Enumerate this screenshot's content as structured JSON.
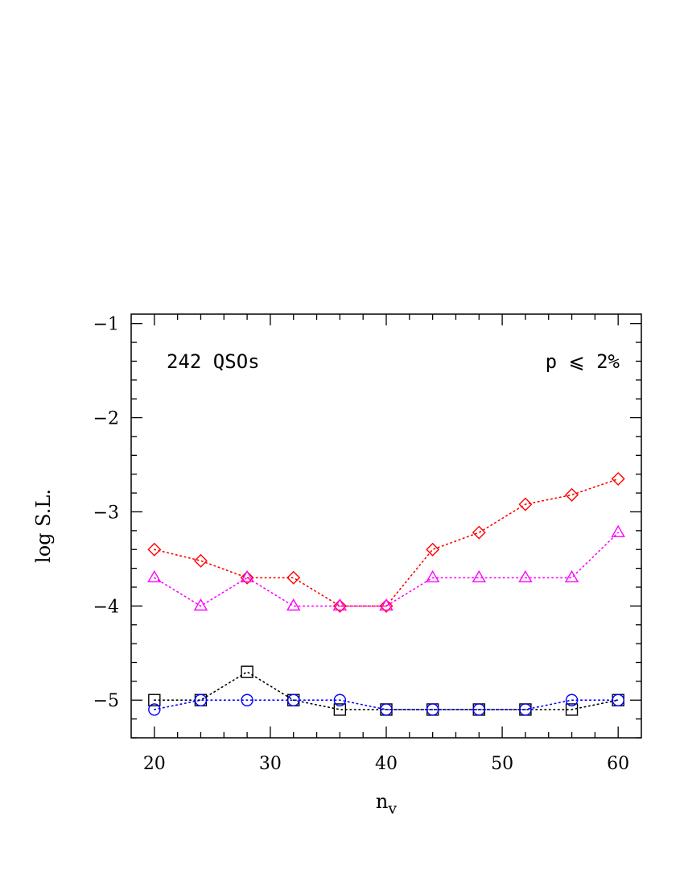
{
  "chart_data": {
    "type": "scatter",
    "xlabel_base": "n",
    "xlabel_sub": "v",
    "ylabel": "log S.L.",
    "xlim": [
      18,
      62
    ],
    "ylim": [
      -5.4,
      -0.9
    ],
    "xticks": [
      20,
      30,
      40,
      50,
      60
    ],
    "xtick_labels": [
      "20",
      "30",
      "40",
      "50",
      "60"
    ],
    "yticks": [
      -1,
      -2,
      -3,
      -4,
      -5
    ],
    "ytick_labels": [
      "−1",
      "−2",
      "−3",
      "−4",
      "−5"
    ],
    "grid": false,
    "annotations": [
      {
        "text": "242  QSOs",
        "position": "top-left"
      },
      {
        "text": "p  ⩽  2%",
        "position": "top-right"
      }
    ],
    "x": [
      20,
      24,
      28,
      32,
      36,
      40,
      44,
      48,
      52,
      56,
      60
    ],
    "series": [
      {
        "marker": "diamond",
        "color": "#ff0000",
        "values": [
          -3.4,
          -3.52,
          -3.7,
          -3.7,
          -4.0,
          -4.0,
          -3.4,
          -3.22,
          -2.92,
          -2.82,
          -2.65
        ]
      },
      {
        "marker": "triangle",
        "color": "#ff00ff",
        "values": [
          -3.7,
          -4.0,
          -3.7,
          -4.0,
          -4.0,
          -4.0,
          -3.7,
          -3.7,
          -3.7,
          -3.7,
          -3.22
        ]
      },
      {
        "marker": "square",
        "color": "#000000",
        "values": [
          -5.0,
          -5.0,
          -4.7,
          -5.0,
          -5.1,
          -5.1,
          -5.1,
          -5.1,
          -5.1,
          -5.1,
          -5.0
        ]
      },
      {
        "marker": "circle",
        "color": "#0000ff",
        "values": [
          -5.1,
          -5.0,
          -5.0,
          -5.0,
          -5.0,
          -5.1,
          -5.1,
          -5.1,
          -5.1,
          -5.0,
          -5.0
        ]
      }
    ]
  }
}
